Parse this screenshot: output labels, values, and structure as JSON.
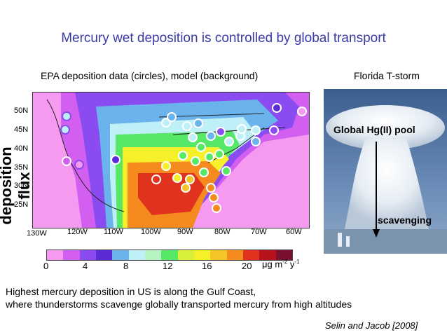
{
  "title": "Mercury wet deposition is controlled by global transport",
  "map_caption": "EPA deposition data (circles), model (background)",
  "photo_caption": "Florida T-storm",
  "y_axis_label": "Wet deposition flux",
  "latitude_ticks": [
    "50N",
    "45N",
    "40N",
    "35N",
    "30N",
    "25N"
  ],
  "longitude_ticks": [
    "130W",
    "120W",
    "110W",
    "100W",
    "90W",
    "80W",
    "70W",
    "60W"
  ],
  "colorbar": {
    "colors": [
      "#f59af0",
      "#d35ff0",
      "#8a4cf0",
      "#5b2cd6",
      "#6ab3ec",
      "#bff0f7",
      "#b6f5c2",
      "#57e868",
      "#d8f03a",
      "#f5f029",
      "#f5c426",
      "#f58a1f",
      "#e0321c",
      "#b5121c",
      "#7a1030"
    ],
    "tick_labels": [
      "0",
      "4",
      "8",
      "12",
      "16",
      "20"
    ],
    "units": "μg m",
    "units_exp1": "-2",
    "units_mid": " y",
    "units_exp2": "-1"
  },
  "photo_labels": {
    "pool": "Global Hg(II) pool",
    "scavenging": "scavenging"
  },
  "summary_line_1": "Highest mercury deposition in US is along the Gulf Coast,",
  "summary_line_2": "where thunderstorms scavenge globally transported mercury from high altitudes",
  "citation": "Selin and Jacob [2008]"
}
